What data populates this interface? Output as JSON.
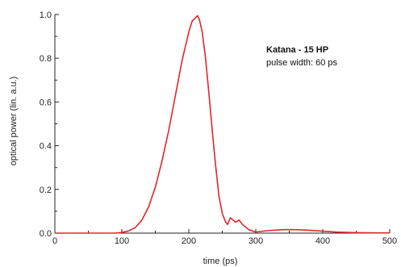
{
  "chart_data": {
    "type": "line",
    "title": "",
    "xlabel": "time (ps)",
    "ylabel": "optical power (lin. a.u.)",
    "xlim": [
      0,
      500
    ],
    "ylim": [
      0.0,
      1.0
    ],
    "x_ticks": [
      0,
      100,
      200,
      300,
      400,
      500
    ],
    "y_ticks": [
      0.0,
      0.2,
      0.4,
      0.6,
      0.8,
      1.0
    ],
    "x_tick_labels": [
      "0",
      "100",
      "200",
      "300",
      "400",
      "500"
    ],
    "y_tick_labels": [
      "0.0",
      "0.2",
      "0.4",
      "0.6",
      "0.8",
      "1.0"
    ],
    "grid": false,
    "annotation": {
      "title": "Katana - 15 HP",
      "subtitle": "pulse width: 60 ps"
    },
    "series": [
      {
        "color": "#e0262a",
        "x": [
          0,
          50,
          90,
          100,
          110,
          120,
          130,
          140,
          150,
          160,
          170,
          180,
          190,
          200,
          205,
          210,
          213,
          216,
          220,
          225,
          230,
          235,
          240,
          245,
          250,
          255,
          258,
          262,
          266,
          270,
          275,
          280,
          290,
          300,
          320,
          340,
          360,
          380,
          400,
          420,
          450,
          480,
          500
        ],
        "y": [
          0.0,
          0.0,
          0.0,
          0.003,
          0.01,
          0.025,
          0.06,
          0.12,
          0.21,
          0.33,
          0.47,
          0.63,
          0.79,
          0.92,
          0.97,
          0.985,
          0.995,
          0.975,
          0.92,
          0.8,
          0.64,
          0.47,
          0.31,
          0.17,
          0.09,
          0.05,
          0.04,
          0.07,
          0.06,
          0.05,
          0.06,
          0.04,
          0.015,
          0.005,
          0.012,
          0.016,
          0.016,
          0.013,
          0.009,
          0.005,
          0.002,
          0.001,
          0.001
        ]
      }
    ]
  }
}
